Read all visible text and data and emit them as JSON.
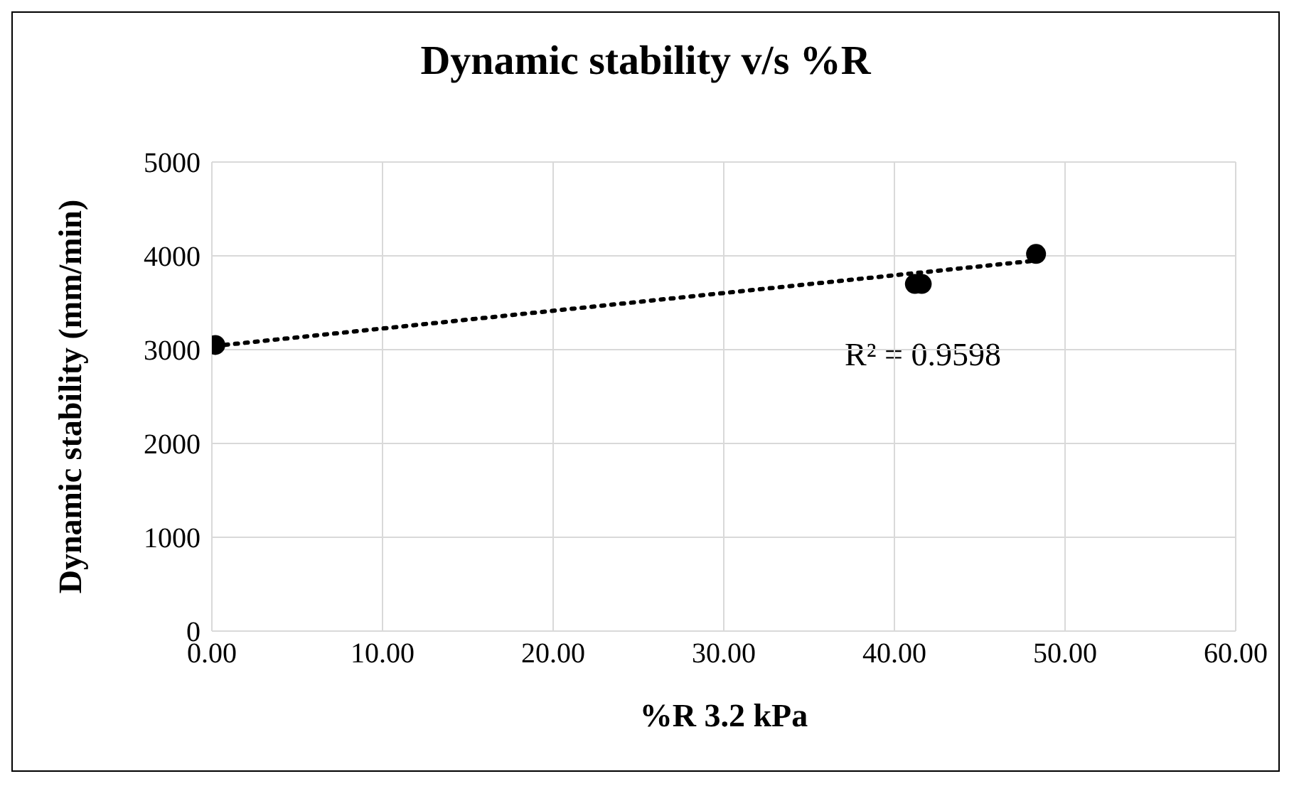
{
  "chart_data": {
    "type": "scatter",
    "title": "Dynamic stability v/s %R",
    "xlabel": "%R 3.2 kPa",
    "ylabel": "Dynamic stability (mm/min)",
    "series": [
      {
        "color": "#000000",
        "marker": "circle",
        "x": [
          0.2,
          41.2,
          41.6,
          48.3
        ],
        "values": [
          3050,
          3700,
          3700,
          4020
        ]
      },
      {
        "type": "line",
        "color": "#000000",
        "marker": "none",
        "line_style": "dotted",
        "x": [
          0.2,
          48.3
        ],
        "values": [
          3040,
          3950
        ]
      }
    ],
    "annotations": [
      "R² = 0.9598"
    ],
    "xlim": [
      0,
      60
    ],
    "xticks": [
      {
        "value": 0,
        "label": "0.00"
      },
      {
        "value": 10,
        "label": "10.00"
      },
      {
        "value": 20,
        "label": "20.00"
      },
      {
        "value": 30,
        "label": "30.00"
      },
      {
        "value": 40,
        "label": "40.00"
      },
      {
        "value": 50,
        "label": "50.00"
      },
      {
        "value": 60,
        "label": "60.00"
      }
    ],
    "ylim": [
      0,
      5000
    ],
    "yticks": [
      0,
      1000,
      2000,
      3000,
      4000,
      5000
    ],
    "grid": true,
    "legend": false
  }
}
